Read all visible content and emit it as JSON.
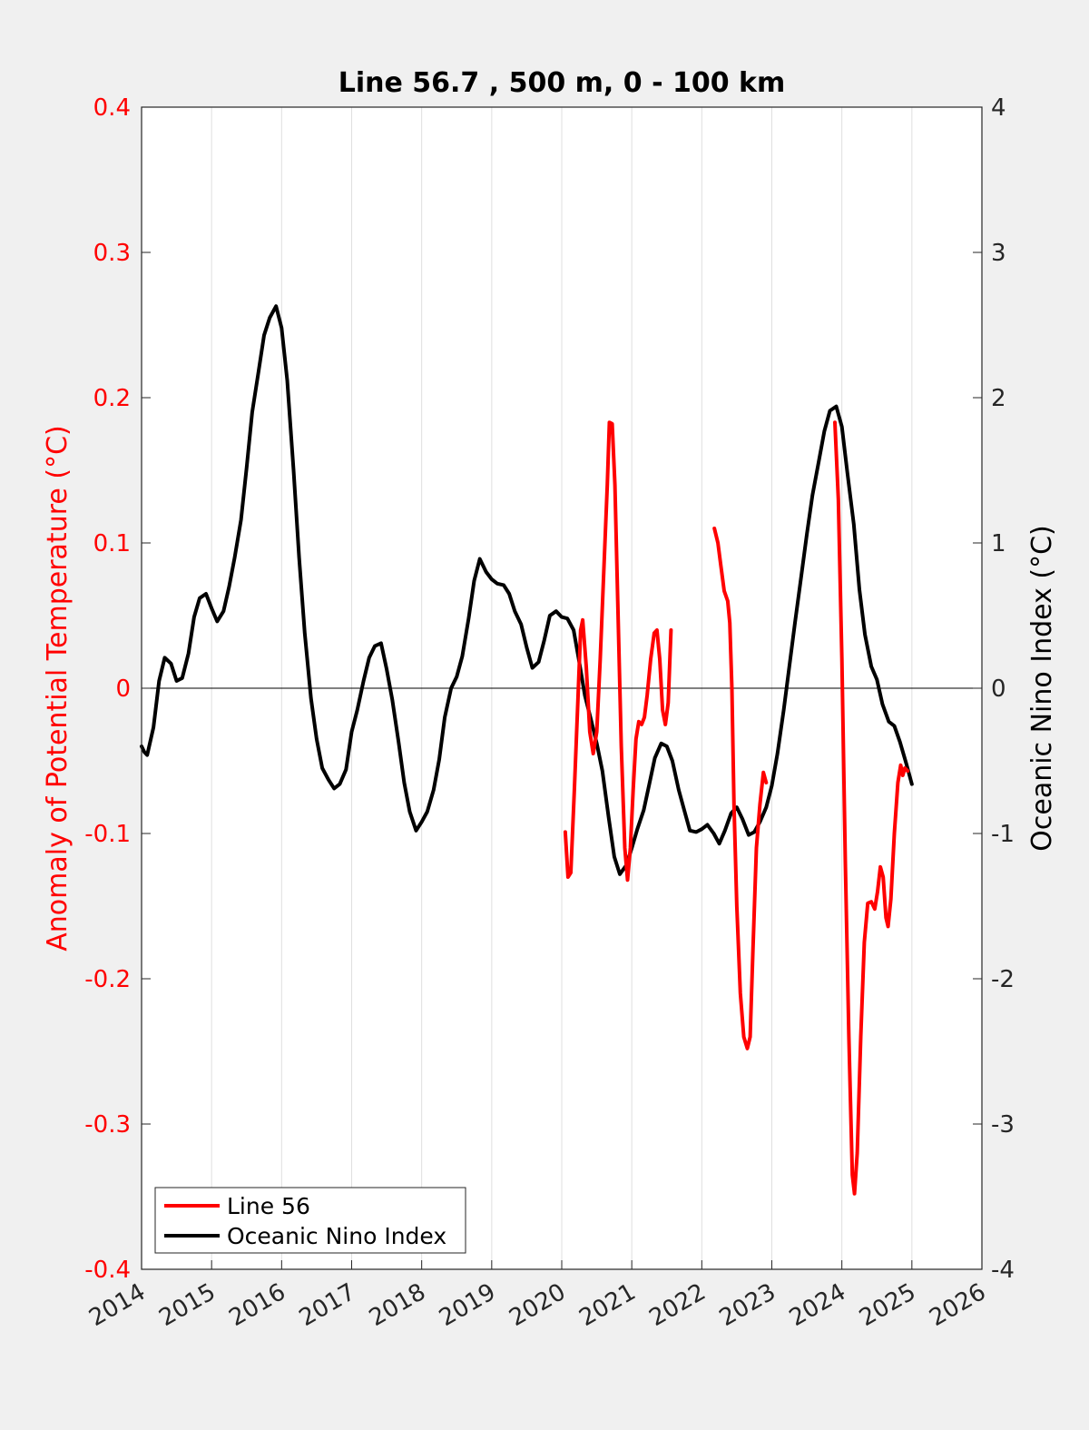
{
  "chart_data": {
    "type": "line",
    "title": "Line 56.7 , 500 m, 0 - 100 km",
    "xlim": [
      2014,
      2026
    ],
    "x_ticks": [
      "2014",
      "2015",
      "2016",
      "2017",
      "2018",
      "2019",
      "2020",
      "2021",
      "2022",
      "2023",
      "2024",
      "2025",
      "2026"
    ],
    "x_grid": true,
    "y_left": {
      "label": "Anomaly of Potential Temperature (°C)",
      "color": "#ff0000",
      "lim": [
        -0.4,
        0.4
      ],
      "ticks": [
        "-0.4",
        "-0.3",
        "-0.2",
        "-0.1",
        "0",
        "0.1",
        "0.2",
        "0.3",
        "0.4"
      ]
    },
    "y_right": {
      "label": "Oceanic Nino Index (°C)",
      "color": "#000000",
      "lim": [
        -4,
        4
      ],
      "ticks": [
        "-4",
        "-3",
        "-2",
        "-1",
        "0",
        "1",
        "2",
        "3",
        "4"
      ]
    },
    "legend_position": "bottom-left",
    "series": [
      {
        "name": "Line 56",
        "axis": "left",
        "color": "#ff0000",
        "segments": [
          [
            [
              2020.05,
              -0.099
            ],
            [
              2020.09,
              -0.13
            ],
            [
              2020.13,
              -0.127
            ],
            [
              2020.18,
              -0.07
            ],
            [
              2020.23,
              -0.01
            ],
            [
              2020.27,
              0.04
            ],
            [
              2020.3,
              0.047
            ],
            [
              2020.35,
              0.015
            ],
            [
              2020.4,
              -0.03
            ],
            [
              2020.45,
              -0.045
            ],
            [
              2020.5,
              -0.03
            ],
            [
              2020.55,
              0.02
            ],
            [
              2020.6,
              0.08
            ],
            [
              2020.65,
              0.14
            ],
            [
              2020.68,
              0.183
            ],
            [
              2020.72,
              0.182
            ],
            [
              2020.76,
              0.14
            ],
            [
              2020.8,
              0.06
            ],
            [
              2020.85,
              -0.04
            ],
            [
              2020.9,
              -0.11
            ],
            [
              2020.94,
              -0.132
            ],
            [
              2020.98,
              -0.11
            ],
            [
              2021.02,
              -0.07
            ],
            [
              2021.06,
              -0.035
            ],
            [
              2021.1,
              -0.023
            ],
            [
              2021.14,
              -0.025
            ],
            [
              2021.18,
              -0.02
            ],
            [
              2021.22,
              -0.005
            ],
            [
              2021.27,
              0.02
            ],
            [
              2021.32,
              0.038
            ],
            [
              2021.36,
              0.04
            ],
            [
              2021.4,
              0.02
            ],
            [
              2021.44,
              -0.015
            ],
            [
              2021.48,
              -0.025
            ],
            [
              2021.52,
              -0.01
            ],
            [
              2021.56,
              0.04
            ]
          ],
          [
            [
              2022.18,
              0.11
            ],
            [
              2022.23,
              0.1
            ],
            [
              2022.27,
              0.085
            ],
            [
              2022.32,
              0.067
            ],
            [
              2022.37,
              0.06
            ],
            [
              2022.4,
              0.045
            ],
            [
              2022.43,
              0.0
            ],
            [
              2022.46,
              -0.08
            ],
            [
              2022.5,
              -0.15
            ],
            [
              2022.55,
              -0.21
            ],
            [
              2022.6,
              -0.24
            ],
            [
              2022.65,
              -0.248
            ],
            [
              2022.69,
              -0.24
            ],
            [
              2022.73,
              -0.18
            ],
            [
              2022.78,
              -0.11
            ],
            [
              2022.83,
              -0.08
            ],
            [
              2022.88,
              -0.058
            ],
            [
              2022.92,
              -0.065
            ]
          ],
          [
            [
              2023.9,
              0.183
            ],
            [
              2023.95,
              0.13
            ],
            [
              2024.0,
              0.02
            ],
            [
              2024.05,
              -0.12
            ],
            [
              2024.1,
              -0.24
            ],
            [
              2024.15,
              -0.335
            ],
            [
              2024.18,
              -0.348
            ],
            [
              2024.22,
              -0.32
            ],
            [
              2024.27,
              -0.24
            ],
            [
              2024.32,
              -0.175
            ],
            [
              2024.37,
              -0.148
            ],
            [
              2024.42,
              -0.147
            ],
            [
              2024.47,
              -0.152
            ],
            [
              2024.51,
              -0.14
            ],
            [
              2024.55,
              -0.123
            ],
            [
              2024.59,
              -0.13
            ],
            [
              2024.63,
              -0.158
            ],
            [
              2024.66,
              -0.164
            ],
            [
              2024.7,
              -0.145
            ],
            [
              2024.75,
              -0.1
            ],
            [
              2024.8,
              -0.065
            ],
            [
              2024.84,
              -0.053
            ],
            [
              2024.87,
              -0.06
            ],
            [
              2024.9,
              -0.055
            ],
            [
              2024.94,
              -0.057
            ]
          ]
        ]
      },
      {
        "name": "Oceanic Nino Index",
        "axis": "right",
        "color": "#000000",
        "segments": [
          [
            [
              2014.0,
              -0.4
            ],
            [
              2014.04,
              -0.44
            ],
            [
              2014.08,
              -0.46
            ],
            [
              2014.17,
              -0.27
            ],
            [
              2014.25,
              0.05
            ],
            [
              2014.33,
              0.21
            ],
            [
              2014.42,
              0.17
            ],
            [
              2014.5,
              0.05
            ],
            [
              2014.58,
              0.07
            ],
            [
              2014.67,
              0.24
            ],
            [
              2014.75,
              0.49
            ],
            [
              2014.83,
              0.62
            ],
            [
              2014.92,
              0.65
            ],
            [
              2015.0,
              0.55
            ],
            [
              2015.08,
              0.46
            ],
            [
              2015.17,
              0.53
            ],
            [
              2015.25,
              0.7
            ],
            [
              2015.33,
              0.9
            ],
            [
              2015.42,
              1.16
            ],
            [
              2015.5,
              1.52
            ],
            [
              2015.58,
              1.9
            ],
            [
              2015.67,
              2.18
            ],
            [
              2015.75,
              2.43
            ],
            [
              2015.83,
              2.55
            ],
            [
              2015.92,
              2.63
            ],
            [
              2016.0,
              2.48
            ],
            [
              2016.08,
              2.12
            ],
            [
              2016.17,
              1.5
            ],
            [
              2016.25,
              0.9
            ],
            [
              2016.33,
              0.38
            ],
            [
              2016.42,
              -0.07
            ],
            [
              2016.5,
              -0.35
            ],
            [
              2016.58,
              -0.55
            ],
            [
              2016.67,
              -0.63
            ],
            [
              2016.75,
              -0.69
            ],
            [
              2016.83,
              -0.66
            ],
            [
              2016.92,
              -0.56
            ],
            [
              2017.0,
              -0.3
            ],
            [
              2017.08,
              -0.15
            ],
            [
              2017.17,
              0.05
            ],
            [
              2017.25,
              0.21
            ],
            [
              2017.33,
              0.29
            ],
            [
              2017.42,
              0.31
            ],
            [
              2017.5,
              0.13
            ],
            [
              2017.58,
              -0.08
            ],
            [
              2017.67,
              -0.37
            ],
            [
              2017.75,
              -0.65
            ],
            [
              2017.83,
              -0.85
            ],
            [
              2017.92,
              -0.98
            ],
            [
              2018.0,
              -0.92
            ],
            [
              2018.08,
              -0.85
            ],
            [
              2018.17,
              -0.7
            ],
            [
              2018.25,
              -0.49
            ],
            [
              2018.33,
              -0.2
            ],
            [
              2018.42,
              0.0
            ],
            [
              2018.5,
              0.08
            ],
            [
              2018.58,
              0.22
            ],
            [
              2018.67,
              0.48
            ],
            [
              2018.75,
              0.74
            ],
            [
              2018.83,
              0.89
            ],
            [
              2018.92,
              0.8
            ],
            [
              2019.0,
              0.75
            ],
            [
              2019.08,
              0.72
            ],
            [
              2019.17,
              0.71
            ],
            [
              2019.25,
              0.65
            ],
            [
              2019.33,
              0.53
            ],
            [
              2019.42,
              0.44
            ],
            [
              2019.5,
              0.28
            ],
            [
              2019.58,
              0.14
            ],
            [
              2019.67,
              0.18
            ],
            [
              2019.75,
              0.33
            ],
            [
              2019.83,
              0.5
            ],
            [
              2019.92,
              0.53
            ],
            [
              2020.0,
              0.49
            ],
            [
              2020.08,
              0.48
            ],
            [
              2020.17,
              0.4
            ],
            [
              2020.25,
              0.18
            ],
            [
              2020.33,
              -0.05
            ],
            [
              2020.42,
              -0.22
            ],
            [
              2020.5,
              -0.38
            ],
            [
              2020.58,
              -0.57
            ],
            [
              2020.67,
              -0.89
            ],
            [
              2020.75,
              -1.16
            ],
            [
              2020.83,
              -1.28
            ],
            [
              2020.92,
              -1.22
            ],
            [
              2021.0,
              -1.1
            ],
            [
              2021.08,
              -0.97
            ],
            [
              2021.17,
              -0.84
            ],
            [
              2021.25,
              -0.66
            ],
            [
              2021.33,
              -0.48
            ],
            [
              2021.42,
              -0.38
            ],
            [
              2021.5,
              -0.4
            ],
            [
              2021.58,
              -0.5
            ],
            [
              2021.67,
              -0.7
            ],
            [
              2021.75,
              -0.84
            ],
            [
              2021.83,
              -0.98
            ],
            [
              2021.92,
              -0.99
            ],
            [
              2022.0,
              -0.97
            ],
            [
              2022.08,
              -0.94
            ],
            [
              2022.17,
              -1.0
            ],
            [
              2022.25,
              -1.07
            ],
            [
              2022.33,
              -0.98
            ],
            [
              2022.42,
              -0.86
            ],
            [
              2022.5,
              -0.82
            ],
            [
              2022.58,
              -0.9
            ],
            [
              2022.67,
              -1.01
            ],
            [
              2022.75,
              -0.99
            ],
            [
              2022.83,
              -0.92
            ],
            [
              2022.92,
              -0.82
            ],
            [
              2023.0,
              -0.67
            ],
            [
              2023.08,
              -0.45
            ],
            [
              2023.17,
              -0.15
            ],
            [
              2023.25,
              0.15
            ],
            [
              2023.33,
              0.45
            ],
            [
              2023.42,
              0.77
            ],
            [
              2023.5,
              1.06
            ],
            [
              2023.58,
              1.33
            ],
            [
              2023.67,
              1.56
            ],
            [
              2023.75,
              1.77
            ],
            [
              2023.83,
              1.91
            ],
            [
              2023.92,
              1.94
            ],
            [
              2024.0,
              1.8
            ],
            [
              2024.08,
              1.48
            ],
            [
              2024.17,
              1.13
            ],
            [
              2024.25,
              0.68
            ],
            [
              2024.33,
              0.37
            ],
            [
              2024.42,
              0.15
            ],
            [
              2024.5,
              0.06
            ],
            [
              2024.58,
              -0.11
            ],
            [
              2024.67,
              -0.23
            ],
            [
              2024.75,
              -0.26
            ],
            [
              2024.83,
              -0.37
            ],
            [
              2024.92,
              -0.52
            ],
            [
              2025.0,
              -0.66
            ]
          ]
        ]
      }
    ]
  }
}
